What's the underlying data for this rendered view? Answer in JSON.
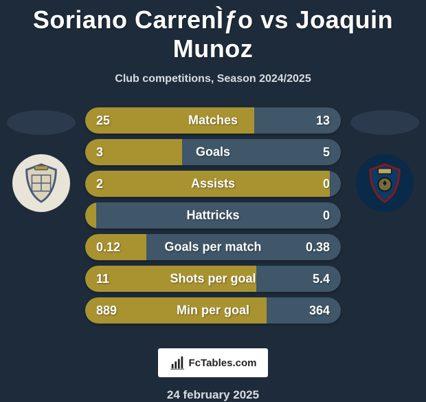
{
  "title": "Soriano CarrenÌƒo vs Joaquin Munoz",
  "subtitle": "Club competitions, Season 2024/2025",
  "branding_label": "FcTables.com",
  "date": "24 february 2025",
  "colors": {
    "left": "#a99331",
    "right": "#3f5768",
    "background": "#1e2b3a"
  },
  "metrics": [
    {
      "name": "Matches",
      "left_value": "25",
      "right_value": "13",
      "left_share": 0.66
    },
    {
      "name": "Goals",
      "left_value": "3",
      "right_value": "5",
      "left_share": 0.38
    },
    {
      "name": "Assists",
      "left_value": "2",
      "right_value": "0",
      "left_share": 0.98
    },
    {
      "name": "Hattricks",
      "left_value": "0",
      "right_value": "0",
      "left_share": 0.03
    },
    {
      "name": "Goals per match",
      "left_value": "0.12",
      "right_value": "0.38",
      "left_share": 0.24
    },
    {
      "name": "Shots per goal",
      "left_value": "11",
      "right_value": "5.4",
      "left_share": 0.67
    },
    {
      "name": "Min per goal",
      "left_value": "889",
      "right_value": "364",
      "left_share": 0.71
    }
  ]
}
